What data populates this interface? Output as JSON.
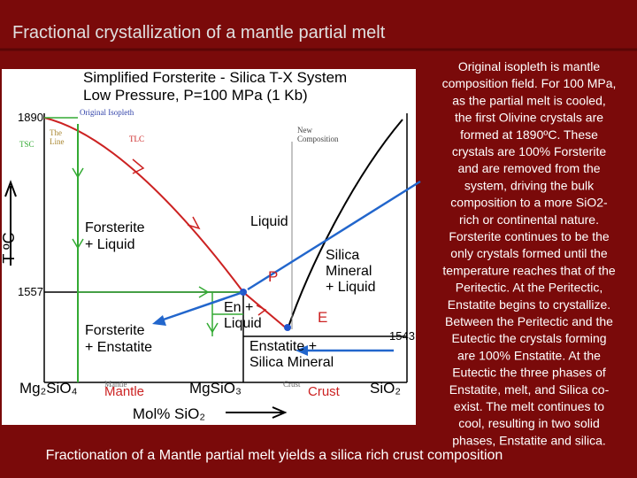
{
  "title": "Fractional crystallization of a mantle partial melt",
  "diagram": {
    "heading": [
      "Simplified Forsterite - Silica T-X System",
      "Low Pressure, P=100 MPa   (1 Kb)"
    ],
    "temperatures": [
      "1890",
      "1557",
      "1543"
    ],
    "axis_y": "T ºC",
    "axis_x": "Mol% SiO₂",
    "components": [
      "Mg₂SiO₄",
      "MgSiO₃",
      "SiO₂"
    ],
    "small_labels": {
      "original_isopleth": "Original Isopleth",
      "tsc": "TSC",
      "the_line": [
        "The",
        "Line"
      ],
      "tlc": "TLC",
      "new_composition": [
        "New",
        "Composition"
      ],
      "mantle_small": "Mantle",
      "crust_small": "Crust"
    },
    "fields": {
      "liquid": "Liquid",
      "forsterite_liquid": [
        "Forsterite",
        "+ Liquid"
      ],
      "silica_liquid": [
        "Silica",
        "Mineral",
        "+ Liquid"
      ],
      "en_liquid": [
        "En +",
        "Liquid"
      ],
      "forsterite_enstatite": [
        "Forsterite",
        "+ Enstatite"
      ],
      "enstatite_silica": [
        "Enstatite +",
        "Silica Mineral"
      ]
    },
    "points": {
      "peritectic": "P",
      "eutectic": "E"
    },
    "callouts": {
      "mantle": "Mantle",
      "crust": "Crust"
    }
  },
  "explanation": [
    "Original isopleth is mantle",
    "composition field. For 100 MPa,",
    "as the partial melt is cooled,",
    "the first Olivine crystals are",
    "formed at 1890ºC. These",
    "crystals are 100% Forsterite",
    "and are removed from the",
    "system, driving the bulk",
    "composition to a more SiO2-",
    "rich or continental nature.",
    "Forsterite continues to be the",
    "only crystals formed until the",
    "temperature reaches that of the",
    "Peritectic. At the Peritectic,",
    "Enstatite begins to crystallize.",
    "Between the Peritectic and the",
    "Eutectic the crystals forming",
    "are 100% Enstatite. At the",
    "Eutectic the three phases of",
    "Enstatite, melt, and Silica co-",
    "exist. The melt continues to",
    "cool, resulting in two solid",
    "phases, Enstatite and silica."
  ],
  "caption": "Fractionation of a Mantle partial melt yields a silica rich crust composition"
}
